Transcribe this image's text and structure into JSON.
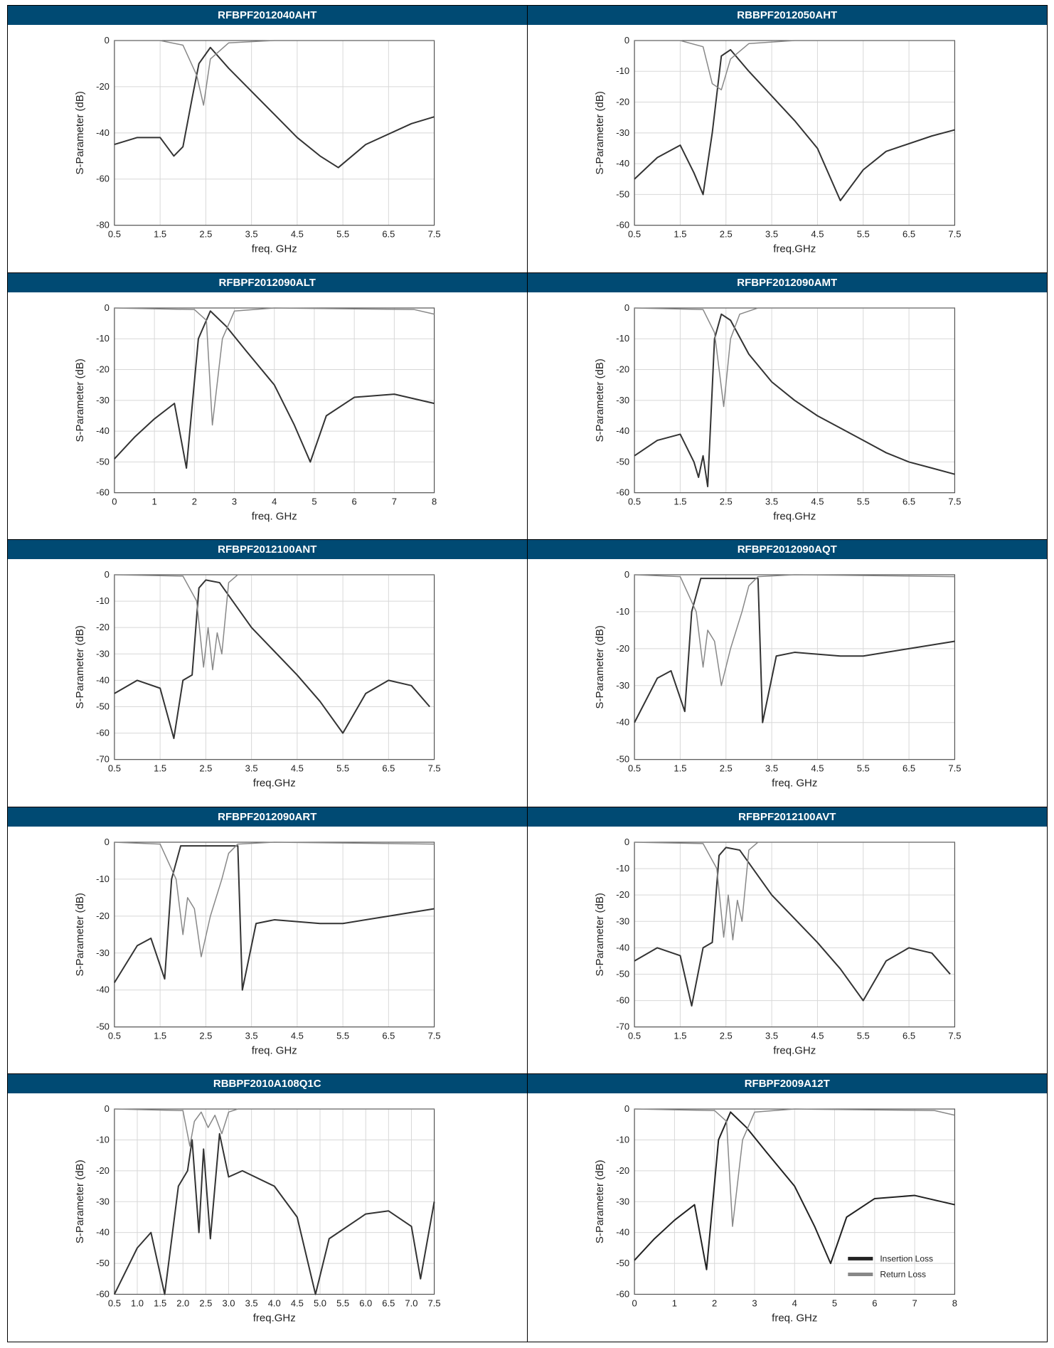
{
  "chart_data": [
    {
      "type": "line",
      "title": "RFBPF2012040AHT",
      "xlabel": "freq. GHz",
      "ylabel": "S-Parameter (dB)",
      "xlim": [
        0.5,
        7.5
      ],
      "ylim": [
        -80,
        0
      ],
      "xticks": [
        "0.5",
        "1.5",
        "2.5",
        "3.5",
        "4.5",
        "5.5",
        "6.5",
        "7.5"
      ],
      "yticks": [
        "0",
        "-20",
        "-40",
        "-60",
        "-80"
      ],
      "series": [
        {
          "x": [
            0.5,
            1.0,
            1.5,
            1.8,
            2.0,
            2.2,
            2.35,
            2.6,
            3.0,
            3.5,
            4.0,
            4.5,
            5.0,
            5.4,
            6.0,
            7.0,
            7.5
          ],
          "y": [
            -45,
            -42,
            -42,
            -50,
            -46,
            -25,
            -10,
            -3,
            -12,
            -22,
            -32,
            -42,
            -50,
            -55,
            -45,
            -36,
            -33
          ]
        },
        {
          "x": [
            0.5,
            1.5,
            2.0,
            2.3,
            2.45,
            2.6,
            3.0,
            4.0,
            7.5
          ],
          "y": [
            0,
            0,
            -2,
            -15,
            -28,
            -8,
            -1,
            0,
            0
          ]
        }
      ]
    },
    {
      "type": "line",
      "title": "RBBPF2012050AHT",
      "xlabel": "freq.GHz",
      "ylabel": "S-Parameter (dB)",
      "xlim": [
        0.5,
        7.5
      ],
      "ylim": [
        -60,
        0
      ],
      "xticks": [
        "0.5",
        "1.5",
        "2.5",
        "3.5",
        "4.5",
        "5.5",
        "6.5",
        "7.5"
      ],
      "yticks": [
        "0",
        "-10",
        "-20",
        "-30",
        "-40",
        "-50",
        "-60"
      ],
      "series": [
        {
          "x": [
            0.5,
            1.0,
            1.5,
            1.8,
            2.0,
            2.2,
            2.4,
            2.6,
            3.0,
            3.5,
            4.0,
            4.5,
            5.0,
            5.5,
            6.0,
            7.0,
            7.5
          ],
          "y": [
            -45,
            -38,
            -34,
            -43,
            -50,
            -30,
            -5,
            -3,
            -10,
            -18,
            -26,
            -35,
            -52,
            -42,
            -36,
            -31,
            -29
          ]
        },
        {
          "x": [
            0.5,
            1.5,
            2.0,
            2.2,
            2.4,
            2.6,
            3.0,
            4.0,
            7.5
          ],
          "y": [
            0,
            0,
            -2,
            -14,
            -16,
            -6,
            -1,
            0,
            0
          ]
        }
      ]
    },
    {
      "type": "line",
      "title": "RFBPF2012090ALT",
      "xlabel": "freq. GHz",
      "ylabel": "S-Parameter (dB)",
      "xlim": [
        0,
        8
      ],
      "ylim": [
        -60,
        0
      ],
      "xticks": [
        "0",
        "1",
        "2",
        "3",
        "4",
        "5",
        "6",
        "7",
        "8"
      ],
      "yticks": [
        "0",
        "-10",
        "-20",
        "-30",
        "-40",
        "-50",
        "-60"
      ],
      "series": [
        {
          "x": [
            0,
            0.5,
            1.0,
            1.5,
            1.8,
            2.1,
            2.4,
            2.8,
            3.3,
            4.0,
            4.5,
            4.9,
            5.3,
            6.0,
            7.0,
            8.0
          ],
          "y": [
            -49,
            -42,
            -36,
            -31,
            -52,
            -10,
            -1,
            -6,
            -14,
            -25,
            -38,
            -50,
            -35,
            -29,
            -28,
            -31
          ]
        },
        {
          "x": [
            0,
            2.0,
            2.3,
            2.45,
            2.7,
            3.0,
            4.0,
            7.5,
            8.0
          ],
          "y": [
            0,
            -0.5,
            -4,
            -38,
            -10,
            -1,
            0,
            -0.5,
            -2
          ]
        }
      ]
    },
    {
      "type": "line",
      "title": "RFBPF2012090AMT",
      "xlabel": "freq.GHz",
      "ylabel": "S-Parameter (dB)",
      "xlim": [
        0.5,
        7.5
      ],
      "ylim": [
        -60,
        0
      ],
      "xticks": [
        "0.5",
        "1.5",
        "2.5",
        "3.5",
        "4.5",
        "5.5",
        "6.5",
        "7.5"
      ],
      "yticks": [
        "0",
        "-10",
        "-20",
        "-30",
        "-40",
        "-50",
        "-60"
      ],
      "series": [
        {
          "x": [
            0.5,
            1.0,
            1.5,
            1.8,
            1.9,
            2.0,
            2.1,
            2.25,
            2.4,
            2.6,
            3.0,
            3.5,
            4.0,
            4.5,
            5.0,
            5.5,
            6.0,
            6.5,
            7.0,
            7.5
          ],
          "y": [
            -48,
            -43,
            -41,
            -50,
            -55,
            -48,
            -58,
            -10,
            -2,
            -4,
            -15,
            -24,
            -30,
            -35,
            -39,
            -43,
            -47,
            -50,
            -52,
            -54
          ]
        },
        {
          "x": [
            0.5,
            2.0,
            2.25,
            2.45,
            2.6,
            2.8,
            3.2,
            7.5
          ],
          "y": [
            0,
            -0.5,
            -8,
            -32,
            -10,
            -2,
            0,
            0
          ]
        }
      ]
    },
    {
      "type": "line",
      "title": "RFBPF2012100ANT",
      "xlabel": "freq.GHz",
      "ylabel": "S-Parameter (dB)",
      "xlim": [
        0.5,
        7.5
      ],
      "ylim": [
        -70,
        0
      ],
      "xticks": [
        "0.5",
        "1.5",
        "2.5",
        "3.5",
        "4.5",
        "5.5",
        "6.5",
        "7.5"
      ],
      "yticks": [
        "0",
        "-10",
        "-20",
        "-30",
        "-40",
        "-50",
        "-60",
        "-70"
      ],
      "series": [
        {
          "x": [
            0.5,
            1.0,
            1.5,
            1.8,
            2.0,
            2.2,
            2.35,
            2.5,
            2.8,
            3.5,
            4.5,
            5.0,
            5.5,
            6.0,
            6.5,
            7.0,
            7.4
          ],
          "y": [
            -45,
            -40,
            -43,
            -62,
            -40,
            -38,
            -5,
            -2,
            -3,
            -20,
            -38,
            -48,
            -60,
            -45,
            -40,
            -42,
            -50
          ]
        },
        {
          "x": [
            0.5,
            2.0,
            2.3,
            2.45,
            2.55,
            2.65,
            2.75,
            2.85,
            3.0,
            3.2,
            7.5
          ],
          "y": [
            0,
            -0.5,
            -10,
            -35,
            -20,
            -36,
            -22,
            -30,
            -3,
            0,
            0
          ]
        }
      ]
    },
    {
      "type": "line",
      "title": "RFBPF2012090AQT",
      "xlabel": "freq. GHz",
      "ylabel": "S-Parameter (dB)",
      "xlim": [
        0.5,
        7.5
      ],
      "ylim": [
        -50,
        0
      ],
      "xticks": [
        "0.5",
        "1.5",
        "2.5",
        "3.5",
        "4.5",
        "5.5",
        "6.5",
        "7.5"
      ],
      "yticks": [
        "0",
        "-10",
        "-20",
        "-30",
        "-40",
        "-50"
      ],
      "series": [
        {
          "x": [
            0.5,
            1.0,
            1.3,
            1.6,
            1.75,
            1.95,
            2.1,
            2.3,
            2.5,
            2.8,
            3.2,
            3.3,
            3.6,
            4.0,
            5.0,
            5.5,
            6.5,
            7.5
          ],
          "y": [
            -40,
            -28,
            -26,
            -37,
            -10,
            -1,
            -1,
            -1,
            -1,
            -1,
            -1,
            -40,
            -22,
            -21,
            -22,
            -22,
            -20,
            -18
          ]
        },
        {
          "x": [
            0.5,
            1.5,
            1.85,
            2.0,
            2.1,
            2.25,
            2.4,
            2.6,
            2.85,
            3.0,
            3.2,
            4.0,
            7.5
          ],
          "y": [
            0,
            -0.5,
            -10,
            -25,
            -15,
            -18,
            -30,
            -20,
            -10,
            -3,
            -0.5,
            0,
            -0.5
          ]
        }
      ]
    },
    {
      "type": "line",
      "title": "RFBPF2012090ART",
      "xlabel": "freq. GHz",
      "ylabel": "S-Parameter (dB)",
      "xlim": [
        0.5,
        7.5
      ],
      "ylim": [
        -50,
        0
      ],
      "xticks": [
        "0.5",
        "1.5",
        "2.5",
        "3.5",
        "4.5",
        "5.5",
        "6.5",
        "7.5"
      ],
      "yticks": [
        "0",
        "-10",
        "-20",
        "-30",
        "-40",
        "-50"
      ],
      "series": [
        {
          "x": [
            0.5,
            1.0,
            1.3,
            1.6,
            1.75,
            1.95,
            2.1,
            2.3,
            2.5,
            2.8,
            3.2,
            3.3,
            3.6,
            4.0,
            5.0,
            5.5,
            6.5,
            7.5
          ],
          "y": [
            -38,
            -28,
            -26,
            -37,
            -10,
            -1,
            -1,
            -1,
            -1,
            -1,
            -1,
            -40,
            -22,
            -21,
            -22,
            -22,
            -20,
            -18
          ]
        },
        {
          "x": [
            0.5,
            1.5,
            1.85,
            2.0,
            2.1,
            2.25,
            2.4,
            2.6,
            2.85,
            3.0,
            3.2,
            4.0,
            7.5
          ],
          "y": [
            0,
            -0.5,
            -10,
            -25,
            -15,
            -18,
            -31,
            -20,
            -10,
            -3,
            -0.5,
            0,
            -0.5
          ]
        }
      ]
    },
    {
      "type": "line",
      "title": "RFBPF2012100AVT",
      "xlabel": "freq.GHz",
      "ylabel": "S-Parameter (dB)",
      "xlim": [
        0.5,
        7.5
      ],
      "ylim": [
        -70,
        0
      ],
      "xticks": [
        "0.5",
        "1.5",
        "2.5",
        "3.5",
        "4.5",
        "5.5",
        "6.5",
        "7.5"
      ],
      "yticks": [
        "0",
        "-10",
        "-20",
        "-30",
        "-40",
        "-50",
        "-60",
        "-70"
      ],
      "series": [
        {
          "x": [
            0.5,
            1.0,
            1.5,
            1.75,
            2.0,
            2.2,
            2.35,
            2.5,
            2.8,
            3.5,
            4.5,
            5.0,
            5.5,
            6.0,
            6.5,
            7.0,
            7.4
          ],
          "y": [
            -45,
            -40,
            -43,
            -62,
            -40,
            -38,
            -5,
            -2,
            -3,
            -20,
            -38,
            -48,
            -60,
            -45,
            -40,
            -42,
            -50
          ]
        },
        {
          "x": [
            0.5,
            2.0,
            2.3,
            2.45,
            2.55,
            2.65,
            2.75,
            2.85,
            3.0,
            3.2,
            7.5
          ],
          "y": [
            0,
            -0.5,
            -10,
            -36,
            -20,
            -37,
            -22,
            -30,
            -3,
            0,
            0
          ]
        }
      ]
    },
    {
      "type": "line",
      "title": "RBBPF2010A108Q1C",
      "xlabel": "freq.GHz",
      "ylabel": "S-Parameter (dB)",
      "xlim": [
        0.5,
        7.5
      ],
      "ylim": [
        -60,
        0
      ],
      "xticks": [
        "0.5",
        "1.0",
        "1.5",
        "2.0",
        "2.5",
        "3.0",
        "3.5",
        "4.0",
        "4.5",
        "5.0",
        "5.5",
        "6.0",
        "6.5",
        "7.0",
        "7.5"
      ],
      "yticks": [
        "0",
        "-10",
        "-20",
        "-30",
        "-40",
        "-50",
        "-60"
      ],
      "series": [
        {
          "x": [
            0.5,
            1.0,
            1.3,
            1.6,
            1.9,
            2.1,
            2.2,
            2.35,
            2.45,
            2.6,
            2.8,
            3.0,
            3.3,
            4.0,
            4.5,
            4.9,
            5.2,
            6.0,
            6.5,
            7.0,
            7.2,
            7.5
          ],
          "y": [
            -60,
            -45,
            -40,
            -60,
            -25,
            -20,
            -10,
            -40,
            -13,
            -42,
            -8,
            -22,
            -20,
            -25,
            -35,
            -60,
            -42,
            -34,
            -33,
            -38,
            -55,
            -30
          ]
        },
        {
          "x": [
            0.5,
            2.0,
            2.15,
            2.25,
            2.4,
            2.55,
            2.7,
            2.85,
            3.0,
            3.2,
            7.5
          ],
          "y": [
            0,
            -0.5,
            -12,
            -4,
            -1,
            -6,
            -2,
            -8,
            -1,
            0,
            0
          ]
        }
      ]
    },
    {
      "type": "line",
      "title": "RFBPF2009A12T",
      "xlabel": "freq. GHz",
      "ylabel": "S-Parameter (dB)",
      "xlim": [
        0,
        8
      ],
      "ylim": [
        -60,
        0
      ],
      "xticks": [
        "0",
        "1",
        "2",
        "3",
        "4",
        "5",
        "6",
        "7",
        "8"
      ],
      "yticks": [
        "0",
        "-10",
        "-20",
        "-30",
        "-40",
        "-50",
        "-60"
      ],
      "legend": "bottom-right",
      "series": [
        {
          "name": "Insertion Loss",
          "x": [
            0,
            0.5,
            1.0,
            1.5,
            1.8,
            2.1,
            2.4,
            2.8,
            3.3,
            4.0,
            4.5,
            4.9,
            5.3,
            6.0,
            7.0,
            8.0
          ],
          "y": [
            -49,
            -42,
            -36,
            -31,
            -52,
            -10,
            -1,
            -6,
            -14,
            -25,
            -38,
            -50,
            -35,
            -29,
            -28,
            -31
          ]
        },
        {
          "name": "Return Loss",
          "x": [
            0,
            2.0,
            2.3,
            2.45,
            2.7,
            3.0,
            4.0,
            7.5,
            8.0
          ],
          "y": [
            0,
            -0.5,
            -4,
            -38,
            -10,
            -1,
            0,
            -0.5,
            -2
          ]
        }
      ],
      "series_colors": [
        "#222222",
        "#888888"
      ]
    }
  ]
}
